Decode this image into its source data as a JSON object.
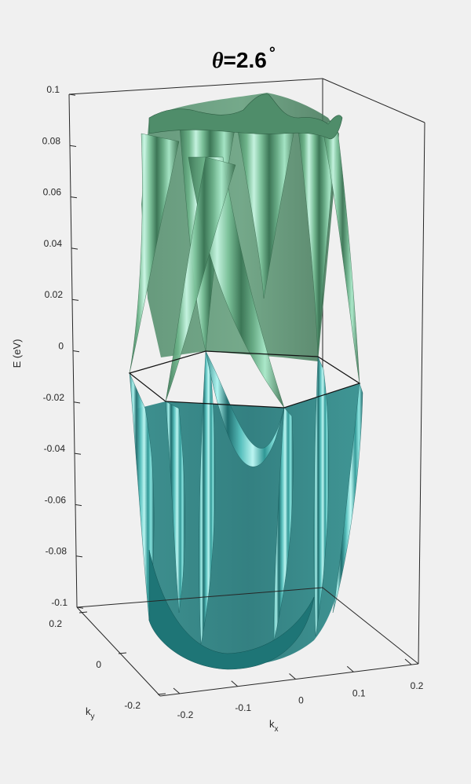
{
  "chart_data": {
    "type": "surface",
    "title": {
      "symbol": "θ",
      "equals": "=",
      "value": "2.6",
      "degree": "°"
    },
    "zlabel": "E (eV)",
    "xlabel": {
      "base": "k",
      "sub": "x"
    },
    "ylabel": {
      "base": "k",
      "sub": "y"
    },
    "zlim": [
      -0.1,
      0.1
    ],
    "xlim": [
      -0.2,
      0.2
    ],
    "ylim": [
      -0.2,
      0.2
    ],
    "z_ticks": [
      "0.1",
      "0.08",
      "0.06",
      "0.04",
      "0.02",
      "0",
      "-0.02",
      "-0.04",
      "-0.06",
      "-0.08",
      "-0.1"
    ],
    "x_ticks": [
      "-0.2",
      "-0.1",
      "0",
      "0.1",
      "0.2"
    ],
    "y_ticks": [
      "0.2",
      "0",
      "-0.2"
    ],
    "brillouin_zone_energy": 0,
    "series": [
      {
        "band": "upper",
        "color_light": "#b9f5dd",
        "color_dark": "#3a7454"
      },
      {
        "band": "lower",
        "color_light": "#aef6f1",
        "color_dark": "#1b6a6b"
      }
    ],
    "background": "#f0f0f0",
    "grid": false
  }
}
